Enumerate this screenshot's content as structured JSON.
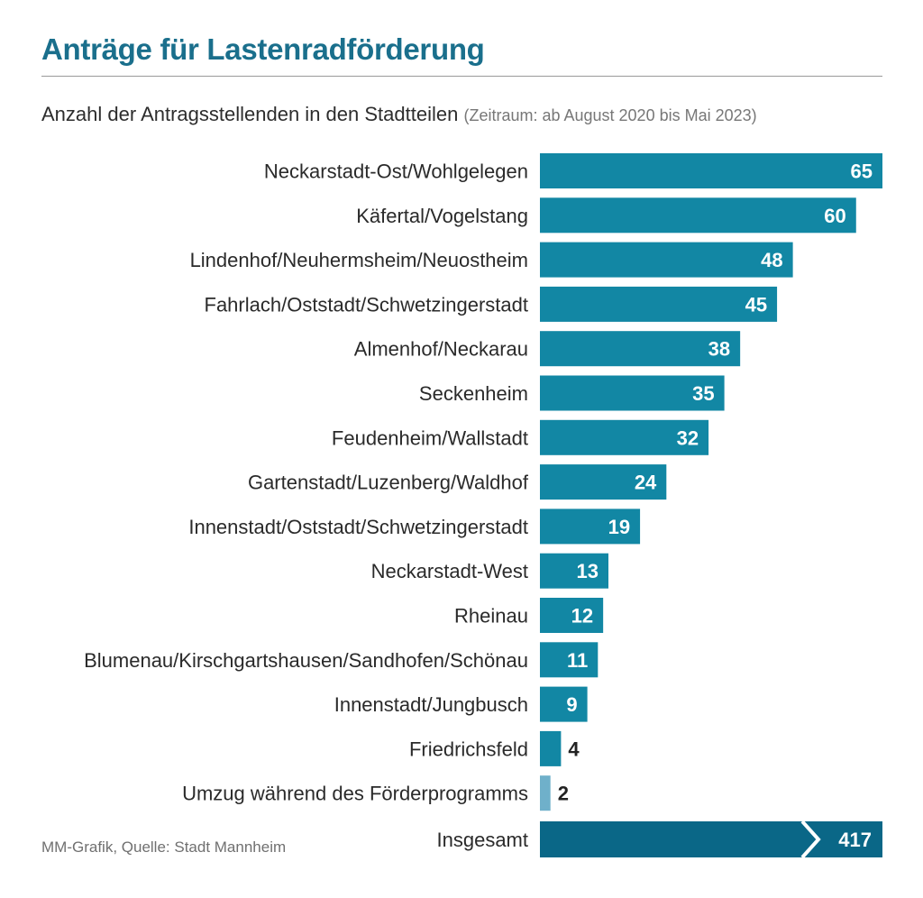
{
  "title": "Anträge für Lastenradförderung",
  "subtitle": "Anzahl der Antragsstellenden in den Stadtteilen",
  "subtitle_note": "(Zeitraum: ab August 2020 bis Mai 2023)",
  "source": "MM-Grafik, Quelle: Stadt Mannheim",
  "colors": {
    "bar": "#1287a4",
    "bar_light": "#6fb0ca",
    "total_bar": "#0a6787",
    "title": "#1a6f8c"
  },
  "chart_data": {
    "type": "bar",
    "orientation": "horizontal",
    "title": "Anträge für Lastenradförderung",
    "subtitle": "Anzahl der Antragsstellenden in den Stadtteilen (Zeitraum: ab August 2020 bis Mai 2023)",
    "xlabel": "",
    "ylabel": "",
    "xlim": [
      0,
      65
    ],
    "grid": false,
    "categories": [
      "Neckarstadt-Ost/Wohlgelegen",
      "Käfertal/Vogelstang",
      "Lindenhof/Neuhermsheim/Neuostheim",
      "Fahrlach/Oststadt/Schwetzingerstadt",
      "Almenhof/Neckarau",
      "Seckenheim",
      "Feudenheim/Wallstadt",
      "Gartenstadt/Luzenberg/Waldhof",
      "Innenstadt/Oststadt/Schwetzingerstadt",
      "Neckarstadt-West",
      "Rheinau",
      "Blumenau/Kirschgartshausen/Sandhofen/Schönau",
      "Innenstadt/Jungbusch",
      "Friedrichsfeld",
      "Umzug während des Förderprogramms"
    ],
    "values": [
      65,
      60,
      48,
      45,
      38,
      35,
      32,
      24,
      19,
      13,
      12,
      11,
      9,
      4,
      2
    ],
    "total": {
      "label": "Insgesamt",
      "value": 417
    }
  }
}
